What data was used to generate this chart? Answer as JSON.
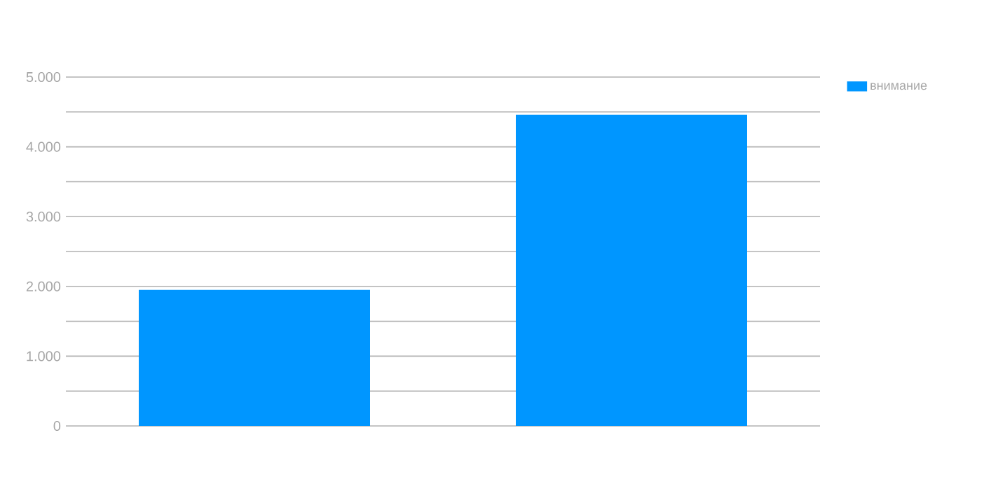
{
  "chart_data": {
    "type": "bar",
    "categories": [
      null,
      null
    ],
    "series": [
      {
        "name": "внимание",
        "color": "#0096ff",
        "values": [
          1950,
          4460
        ]
      }
    ],
    "ylim": [
      0,
      5000
    ],
    "yticks": [
      0,
      {
        "value": 500,
        "label": null
      },
      {
        "value": 1000,
        "label": "1.000"
      },
      {
        "value": 1500,
        "label": null
      },
      {
        "value": 2000,
        "label": "2.000"
      },
      {
        "value": 2500,
        "label": null
      },
      {
        "value": 3000,
        "label": "3.000"
      },
      {
        "value": 3500,
        "label": null
      },
      {
        "value": 4000,
        "label": "4.000"
      },
      {
        "value": 4500,
        "label": null
      },
      {
        "value": 5000,
        "label": "5.000"
      }
    ],
    "grid": "y",
    "legend": "top right"
  }
}
